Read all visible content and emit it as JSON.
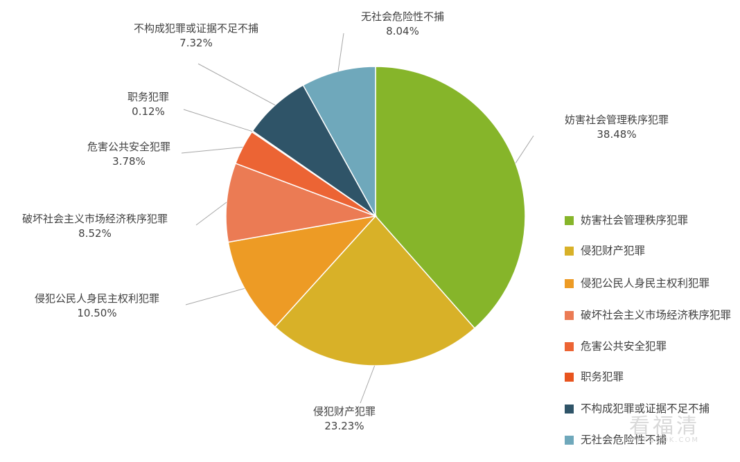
{
  "chart_data": {
    "type": "pie",
    "start_angle_deg": 0,
    "direction": "clockwise",
    "slices": [
      {
        "label": "妨害社会管理秩序犯罪",
        "legend_label": "妨害社会管理秩序犯罪",
        "value": 38.48,
        "value_label": "38.48%",
        "color": "#86b52a"
      },
      {
        "label": "侵犯财产犯罪",
        "legend_label": "侵犯财产犯罪",
        "value": 23.23,
        "value_label": "23.23%",
        "color": "#d8b128"
      },
      {
        "label": "侵犯公民人身民主权利犯罪",
        "legend_label": "侵犯公民人身民主权利犯罪",
        "value": 10.5,
        "value_label": "10.50%",
        "color": "#ed9b25"
      },
      {
        "label": "破坏社会主义市场经济秩序犯罪",
        "legend_label": "破坏社会主义市场经济秩序犯罪",
        "value": 8.52,
        "value_label": "8.52%",
        "color": "#eb7b54"
      },
      {
        "label": "危害公共安全犯罪",
        "legend_label": "危害公共安全犯罪",
        "value": 3.78,
        "value_label": "3.78%",
        "color": "#ec6434"
      },
      {
        "label": "职务犯罪",
        "legend_label": "职务犯罪",
        "value": 0.12,
        "value_label": "0.12%",
        "color": "#e8541e"
      },
      {
        "label": "不构成犯罪或证据不足不捕",
        "legend_label": "不构成犯罪或证据不足不捕",
        "value": 7.32,
        "value_label": "7.32%",
        "color": "#2f5468"
      },
      {
        "label": "无社会危险性不捕",
        "legend_label": "无社会危险性不捕",
        "value": 8.04,
        "value_label": "8.04%",
        "color": "#6fa8bb"
      }
    ],
    "legend_position": "right"
  },
  "watermark": {
    "main": "看福清",
    "sub": "KFQDOK.COM"
  }
}
